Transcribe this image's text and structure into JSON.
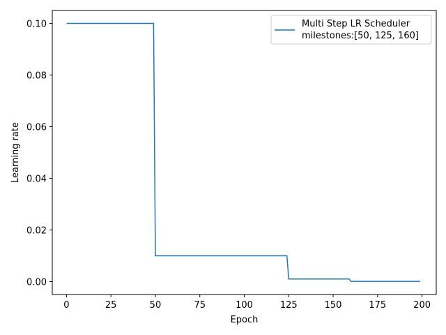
{
  "chart_data": {
    "type": "line",
    "xlabel": "Epoch",
    "ylabel": "Learning rate",
    "xlim": [
      -8,
      208
    ],
    "ylim": [
      -0.005,
      0.105
    ],
    "xticks": [
      0,
      25,
      50,
      75,
      100,
      125,
      150,
      175,
      200
    ],
    "xtick_labels": [
      "0",
      "25",
      "50",
      "75",
      "100",
      "125",
      "150",
      "175",
      "200"
    ],
    "yticks": [
      0.0,
      0.02,
      0.04,
      0.06,
      0.08,
      0.1
    ],
    "ytick_labels": [
      "0.00",
      "0.02",
      "0.04",
      "0.06",
      "0.08",
      "0.10"
    ],
    "grid": false,
    "legend_position": "top-right",
    "series": [
      {
        "name": "Multi Step LR Scheduler\nmilestones:[50, 125, 160]",
        "color": "#1f77b4",
        "x": [
          0,
          49,
          50,
          124,
          125,
          159,
          160,
          199
        ],
        "y": [
          0.1,
          0.1,
          0.01,
          0.01,
          0.001,
          0.001,
          0.0001,
          0.0001
        ]
      }
    ]
  },
  "legend": {
    "line1": "Multi Step LR Scheduler",
    "line2": "milestones:[50, 125, 160]"
  }
}
